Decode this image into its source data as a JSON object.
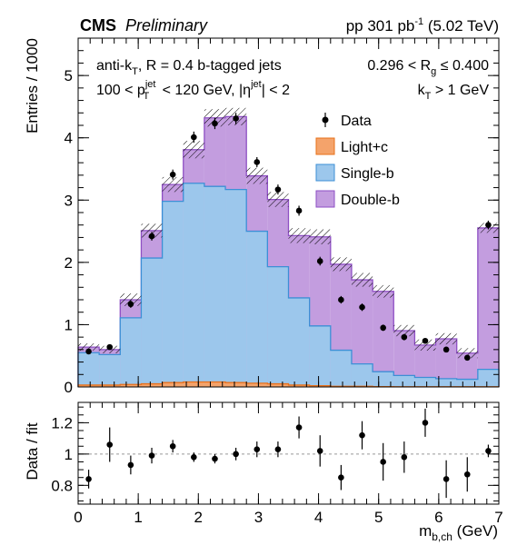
{
  "header": {
    "experiment": "CMS",
    "status": "Preliminary",
    "lumi_prefix": "pp 301 pb",
    "lumi_exp": "-1",
    "energy": "(5.02 TeV)"
  },
  "annotations": {
    "algo_a": "anti-k",
    "algo_b": "T",
    "algo_c": ", R = 0.4 b-tagged jets",
    "rg_a": "0.296 < R",
    "rg_b": "g",
    "rg_c": " ≤ 0.400",
    "pt_a": "100 < p",
    "pt_sup": "jet",
    "pt_sub": "T",
    "pt_b": " < 120 GeV, |η",
    "eta_sup": "jet",
    "pt_c": "| < 2",
    "kt_a": "k",
    "kt_sub": "T",
    "kt_b": " > 1 GeV"
  },
  "legend": [
    "Data",
    "Light+c",
    "Single-b",
    "Double-b"
  ],
  "colors": {
    "light": "#f4a36b",
    "light_line": "#e8701a",
    "single": "#9cc7ec",
    "single_line": "#3d8fd6",
    "double": "#c39ddf",
    "double_line": "#8e4fc4"
  },
  "chart_data": [
    {
      "type": "bar",
      "stacked": true,
      "xlabel_main": "m",
      "xlabel_sub": "b,ch",
      "xlabel_unit": " (GeV)",
      "ylabel": "Entries / 1000",
      "xlim": [
        0,
        7
      ],
      "ylim": [
        0,
        5.6
      ],
      "x_ticks": [
        0,
        1,
        2,
        3,
        4,
        5,
        6,
        7
      ],
      "y_ticks": [
        0,
        1,
        2,
        3,
        4,
        5
      ],
      "bin_edges": [
        0,
        0.35,
        0.7,
        1.05,
        1.4,
        1.75,
        2.1,
        2.45,
        2.8,
        3.15,
        3.5,
        3.85,
        4.2,
        4.55,
        4.9,
        5.25,
        5.6,
        5.95,
        6.3,
        6.65,
        7.0
      ],
      "series": [
        {
          "name": "Light+c",
          "values": [
            0.03,
            0.03,
            0.04,
            0.05,
            0.07,
            0.08,
            0.08,
            0.07,
            0.06,
            0.05,
            0.03,
            0.02,
            0.01,
            0.01,
            0.005,
            0.004,
            0.003,
            0.003,
            0.003,
            0.003
          ]
        },
        {
          "name": "Single-b",
          "values": [
            0.52,
            0.49,
            1.07,
            2.02,
            2.91,
            3.19,
            3.14,
            3.1,
            2.44,
            1.88,
            1.4,
            0.96,
            0.58,
            0.36,
            0.24,
            0.18,
            0.15,
            0.13,
            0.12,
            0.28
          ]
        },
        {
          "name": "Double-b",
          "values": [
            0.09,
            0.08,
            0.29,
            0.44,
            0.27,
            0.54,
            1.1,
            1.17,
            0.89,
            1.08,
            1.0,
            1.43,
            1.38,
            1.35,
            1.29,
            0.72,
            0.52,
            0.64,
            0.42,
            2.27
          ]
        }
      ],
      "mc_uncertainty": [
        0.06,
        0.06,
        0.1,
        0.11,
        0.12,
        0.14,
        0.14,
        0.14,
        0.13,
        0.12,
        0.12,
        0.12,
        0.11,
        0.11,
        0.1,
        0.09,
        0.09,
        0.09,
        0.08,
        0.08
      ],
      "data": {
        "name": "Data",
        "x": [
          0.175,
          0.525,
          0.875,
          1.225,
          1.575,
          1.925,
          2.275,
          2.625,
          2.975,
          3.325,
          3.675,
          4.025,
          4.375,
          4.725,
          5.075,
          5.425,
          5.775,
          6.125,
          6.475,
          6.825
        ],
        "y": [
          0.57,
          0.64,
          1.33,
          2.42,
          3.41,
          4.01,
          4.23,
          4.31,
          3.61,
          3.17,
          2.83,
          2.02,
          1.4,
          1.28,
          0.95,
          0.8,
          0.74,
          0.6,
          0.47,
          2.6
        ],
        "err": [
          0.04,
          0.04,
          0.06,
          0.07,
          0.08,
          0.09,
          0.09,
          0.09,
          0.08,
          0.08,
          0.08,
          0.07,
          0.06,
          0.06,
          0.05,
          0.05,
          0.04,
          0.04,
          0.04,
          0.07
        ]
      }
    },
    {
      "type": "scatter",
      "ylabel": "Data / fit",
      "xlim": [
        0,
        7
      ],
      "ylim": [
        0.68,
        1.33
      ],
      "y_ticks": [
        0.8,
        1,
        1.2
      ],
      "y_tick_labels": [
        "0.8",
        "1",
        "1.2"
      ],
      "reference_line": 1,
      "x": [
        0.175,
        0.525,
        0.875,
        1.225,
        1.575,
        1.925,
        2.275,
        2.625,
        2.975,
        3.325,
        3.675,
        4.025,
        4.375,
        4.725,
        5.075,
        5.425,
        5.775,
        6.125,
        6.475,
        6.825
      ],
      "y": [
        0.84,
        1.06,
        0.93,
        0.99,
        1.05,
        0.98,
        0.97,
        1.0,
        1.03,
        1.03,
        1.17,
        1.02,
        0.85,
        1.12,
        0.95,
        0.98,
        1.2,
        0.84,
        0.87,
        1.02
      ],
      "err": [
        0.06,
        0.11,
        0.06,
        0.05,
        0.04,
        0.03,
        0.03,
        0.04,
        0.05,
        0.05,
        0.07,
        0.1,
        0.08,
        0.09,
        0.12,
        0.1,
        0.09,
        0.12,
        0.11,
        0.04
      ]
    }
  ]
}
